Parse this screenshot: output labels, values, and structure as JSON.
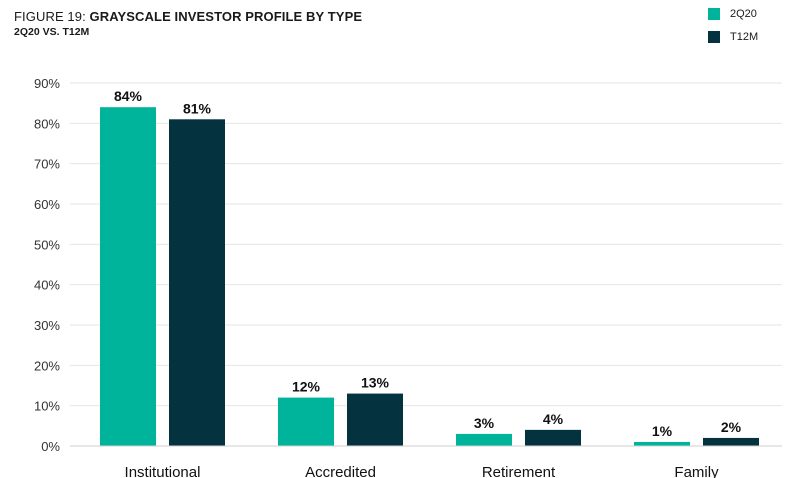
{
  "figure_prefix": "FIGURE 19: ",
  "chart_data": {
    "type": "bar",
    "title": "GRAYSCALE INVESTOR PROFILE BY TYPE",
    "subtitle": "2Q20 VS. T12M",
    "categories": [
      "Institutional",
      "Accredited",
      "Retirement",
      "Family"
    ],
    "series": [
      {
        "name": "2Q20",
        "values": [
          84,
          12,
          3,
          1
        ],
        "labels": [
          "84%",
          "12%",
          "3%",
          "1%"
        ],
        "color": "#00b49c"
      },
      {
        "name": "T12M",
        "values": [
          81,
          13,
          4,
          2
        ],
        "labels": [
          "81%",
          "13%",
          "4%",
          "2%"
        ],
        "color": "#04323f"
      }
    ],
    "ylim": [
      0,
      90
    ],
    "yticks": [
      0,
      10,
      20,
      30,
      40,
      50,
      60,
      70,
      80,
      90
    ],
    "ytick_labels": [
      "0%",
      "10%",
      "20%",
      "30%",
      "40%",
      "50%",
      "60%",
      "70%",
      "80%",
      "90%"
    ],
    "grid": true,
    "legend_position": "top-right"
  }
}
